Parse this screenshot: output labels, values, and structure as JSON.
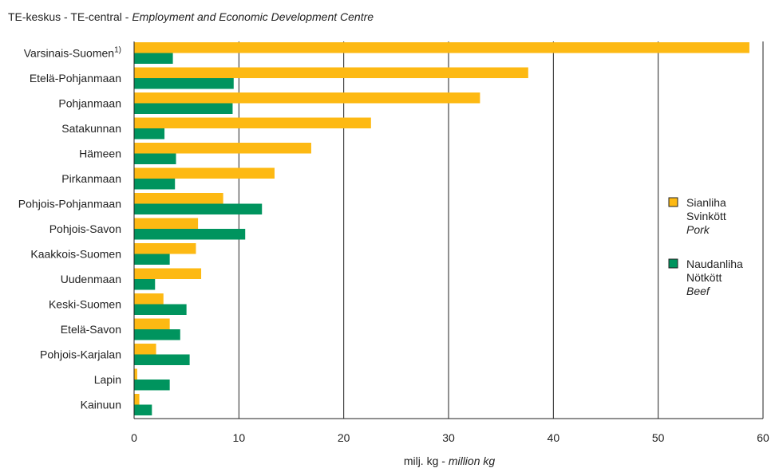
{
  "header": {
    "title_prefix": "TE-keskus - TE-central - ",
    "title_italic": "Employment and Economic Development Centre"
  },
  "chart_data": {
    "type": "bar",
    "orientation": "horizontal",
    "categories": [
      "Varsinais-Suomen",
      "Etelä-Pohjanmaan",
      "Pohjanmaan",
      "Satakunnan",
      "Hämeen",
      "Pirkanmaan",
      "Pohjois-Pohjanmaan",
      "Pohjois-Savon",
      "Kaakkois-Suomen",
      "Uudenmaan",
      "Keski-Suomen",
      "Etelä-Savon",
      "Pohjois-Karjalan",
      "Lapin",
      "Kainuun"
    ],
    "footnote_marker": "1)",
    "series": [
      {
        "name_lines": [
          "Sianliha",
          "Svinkött",
          "Pork"
        ],
        "color": "#FDB913",
        "values": [
          58.7,
          37.6,
          33.0,
          22.6,
          16.9,
          13.4,
          8.5,
          6.1,
          5.9,
          6.4,
          2.8,
          3.4,
          2.1,
          0.3,
          0.5
        ]
      },
      {
        "name_lines": [
          "Naudanliha",
          "Nötkött",
          "Beef"
        ],
        "color": "#00945E",
        "values": [
          3.7,
          9.5,
          9.4,
          2.9,
          4.0,
          3.9,
          12.2,
          10.6,
          3.4,
          2.0,
          5.0,
          4.4,
          5.3,
          3.4,
          1.7
        ]
      }
    ],
    "xlim": [
      0,
      60
    ],
    "xticks": [
      "0",
      "10",
      "20",
      "30",
      "40",
      "50",
      "60"
    ],
    "xlabel_prefix": "milj. kg - ",
    "xlabel_italic": "million kg",
    "grid": "vertical",
    "legend_position": "right"
  }
}
